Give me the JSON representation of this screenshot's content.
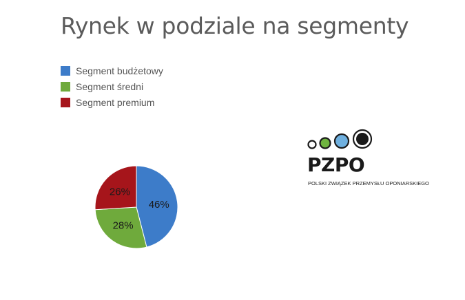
{
  "slide": {
    "title": "Rynek w podziale na segmenty"
  },
  "chart_data": {
    "type": "pie",
    "title": "Rynek w podziale na segmenty",
    "categories": [
      "Segment budżetowy",
      "Segment średni",
      "Segment premium"
    ],
    "values": [
      46,
      28,
      26
    ],
    "labels": [
      "46%",
      "28%",
      "26%"
    ],
    "colors": [
      "#3d7cc9",
      "#6faa3c",
      "#a6151b"
    ],
    "legend_position": "top-left"
  },
  "logo": {
    "wordmark": "PZPO",
    "subtitle": "POLSKI ZWIĄZEK PRZEMYSŁU OPONIARSKIEGO",
    "circle_colors": [
      "#ffffff",
      "#6fb43f",
      "#6fb0df",
      "#1a1a1a"
    ]
  }
}
